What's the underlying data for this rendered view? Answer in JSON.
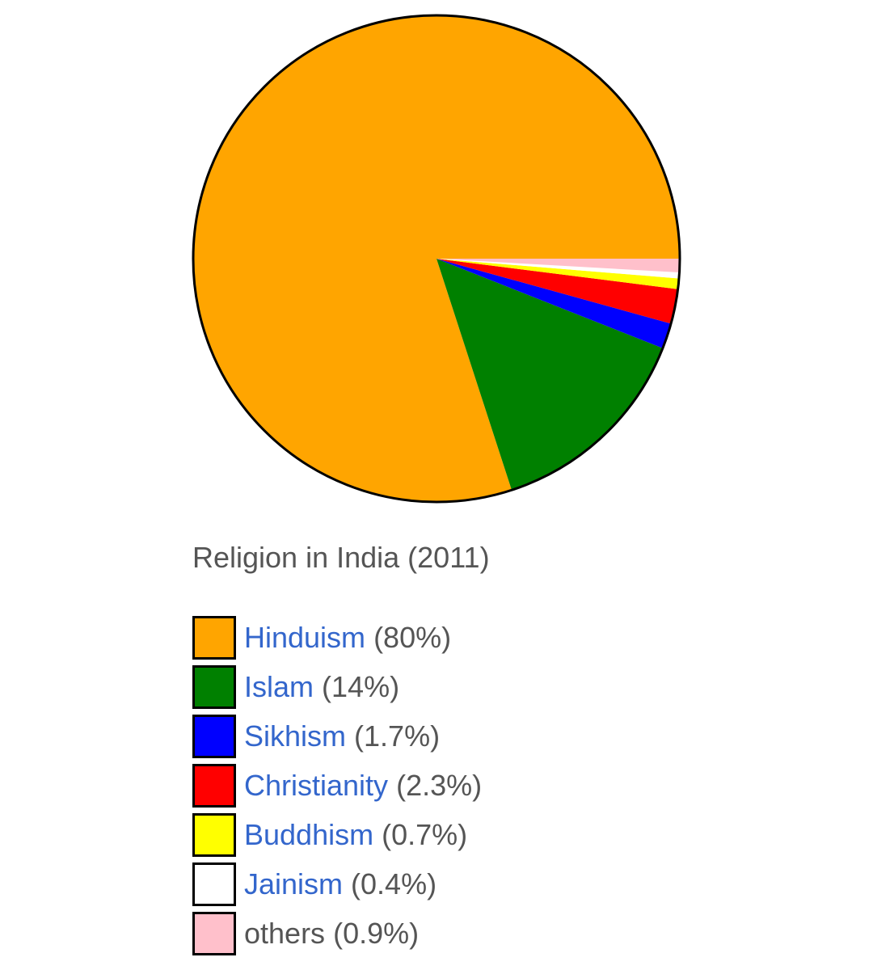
{
  "chart_data": {
    "type": "pie",
    "title": "Religion in India (2011)",
    "slices": [
      {
        "label": "Hinduism",
        "value": 80,
        "value_label": "(80%)",
        "color": "#ffa500",
        "linked": true
      },
      {
        "label": "Islam",
        "value": 14,
        "value_label": "(14%)",
        "color": "#008000",
        "linked": true
      },
      {
        "label": "Sikhism",
        "value": 1.7,
        "value_label": "(1.7%)",
        "color": "#0000ff",
        "linked": true
      },
      {
        "label": "Christianity",
        "value": 2.3,
        "value_label": "(2.3%)",
        "color": "#ff0000",
        "linked": true
      },
      {
        "label": "Buddhism",
        "value": 0.7,
        "value_label": "(0.7%)",
        "color": "#ffff00",
        "linked": true
      },
      {
        "label": "Jainism",
        "value": 0.4,
        "value_label": "(0.4%)",
        "color": "#ffffff",
        "linked": true
      },
      {
        "label": "others",
        "value": 0.9,
        "value_label": "(0.9%)",
        "color": "#ffc0cb",
        "linked": false
      }
    ],
    "legend_position": "bottom-left"
  },
  "colors": {
    "link": "#3366cc",
    "text": "#555555",
    "outline": "#000000"
  }
}
